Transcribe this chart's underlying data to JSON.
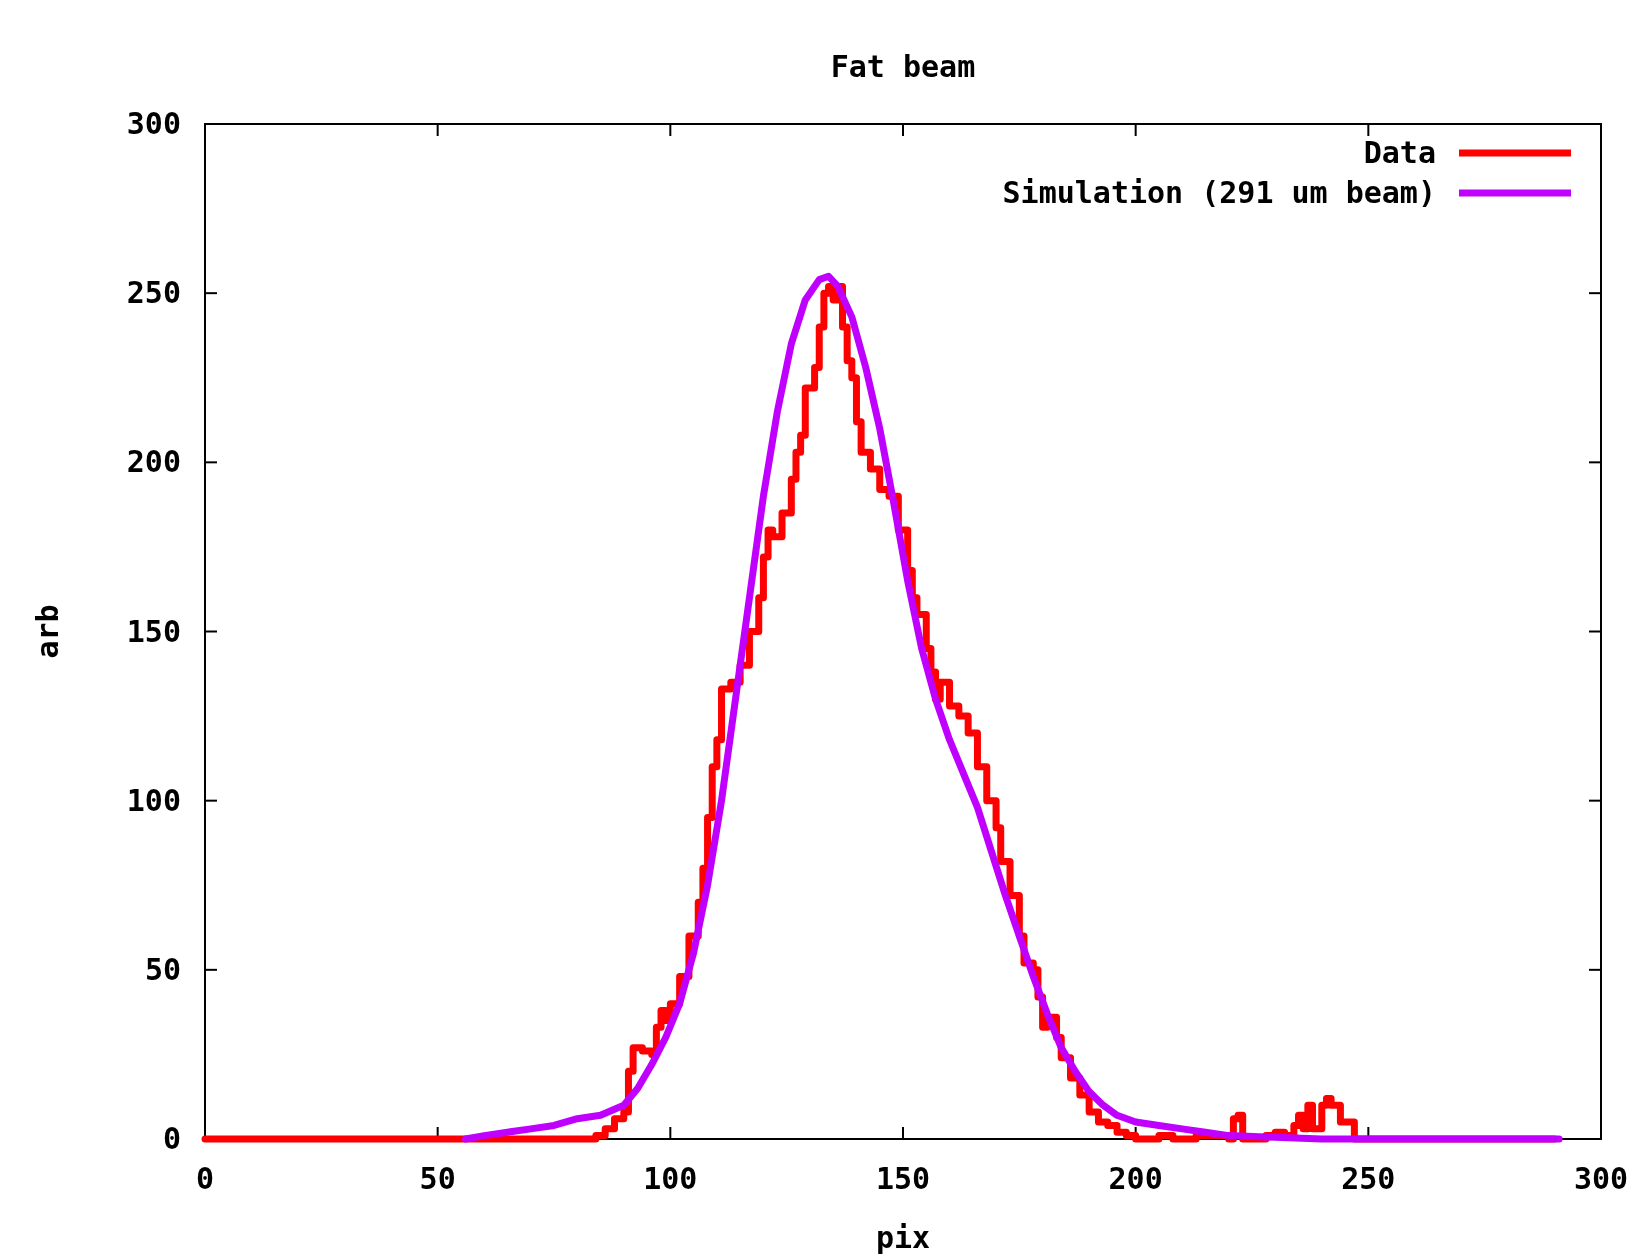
{
  "chart_data": {
    "type": "line",
    "title": "Fat beam",
    "xlabel": "pix",
    "ylabel": "arb",
    "xlim": [
      0,
      300
    ],
    "ylim": [
      0,
      300
    ],
    "xticks": [
      0,
      50,
      100,
      150,
      200,
      250,
      300
    ],
    "yticks": [
      0,
      50,
      100,
      150,
      200,
      250,
      300
    ],
    "grid": false,
    "legend": "top right",
    "line_style": "solid",
    "marker": "none",
    "series": [
      {
        "name": "Data",
        "type": "step",
        "color": "#ff0000",
        "x": [
          0,
          84,
          86,
          88,
          90,
          91,
          92,
          94,
          96,
          97,
          98,
          99,
          100,
          102,
          104,
          106,
          107,
          108,
          109,
          110,
          111,
          113,
          115,
          117,
          119,
          120,
          121,
          122,
          124,
          126,
          127,
          128,
          129,
          131,
          132,
          133,
          134,
          135,
          136,
          137,
          138,
          139,
          140,
          141,
          143,
          145,
          147,
          149,
          151,
          152,
          153,
          155,
          156,
          157,
          158,
          160,
          162,
          164,
          166,
          168,
          170,
          171,
          173,
          175,
          176,
          178,
          179,
          180,
          181,
          183,
          184,
          186,
          188,
          190,
          192,
          194,
          196,
          198,
          200,
          203,
          205,
          208,
          210,
          213,
          216,
          218,
          220,
          221,
          222,
          223,
          225,
          228,
          230,
          232,
          234,
          235,
          236,
          237,
          238,
          240,
          241,
          242,
          244,
          246,
          247,
          250,
          290
        ],
        "values": [
          0,
          1,
          3,
          6,
          8,
          20,
          27,
          26,
          25,
          33,
          38,
          35,
          40,
          48,
          60,
          70,
          80,
          95,
          110,
          118,
          133,
          135,
          140,
          150,
          160,
          172,
          180,
          178,
          185,
          195,
          203,
          208,
          222,
          228,
          240,
          250,
          252,
          248,
          252,
          240,
          230,
          225,
          212,
          203,
          198,
          192,
          190,
          180,
          168,
          160,
          155,
          145,
          138,
          130,
          135,
          128,
          125,
          120,
          110,
          100,
          92,
          82,
          72,
          60,
          52,
          50,
          42,
          33,
          36,
          30,
          24,
          18,
          13,
          8,
          5,
          4,
          2,
          1,
          0,
          0,
          1,
          0,
          0,
          1,
          1,
          1,
          0,
          6,
          7,
          0,
          0,
          1,
          2,
          1,
          4,
          7,
          3,
          10,
          3,
          10,
          12,
          10,
          5,
          5,
          0,
          0,
          0
        ]
      },
      {
        "name": "Simulation (291 um beam)",
        "color": "#c000ff",
        "x": [
          56,
          60,
          65,
          70,
          75,
          80,
          85,
          90,
          93,
          96,
          99,
          102,
          105,
          108,
          111,
          114,
          117,
          120,
          123,
          126,
          129,
          132,
          134,
          136,
          139,
          142,
          145,
          148,
          151,
          154,
          157,
          160,
          163,
          166,
          169,
          172,
          175,
          178,
          181,
          184,
          187,
          190,
          193,
          196,
          200,
          205,
          210,
          215,
          220,
          230,
          240,
          291
        ],
        "values": [
          0,
          1,
          2,
          3,
          4,
          6,
          7,
          10,
          15,
          22,
          30,
          40,
          55,
          75,
          100,
          130,
          160,
          190,
          215,
          235,
          248,
          254,
          255,
          252,
          243,
          228,
          210,
          188,
          165,
          145,
          130,
          118,
          108,
          98,
          85,
          72,
          60,
          48,
          37,
          27,
          20,
          14,
          10,
          7,
          5,
          4,
          3,
          2,
          1,
          0.5,
          0,
          0
        ]
      }
    ]
  }
}
